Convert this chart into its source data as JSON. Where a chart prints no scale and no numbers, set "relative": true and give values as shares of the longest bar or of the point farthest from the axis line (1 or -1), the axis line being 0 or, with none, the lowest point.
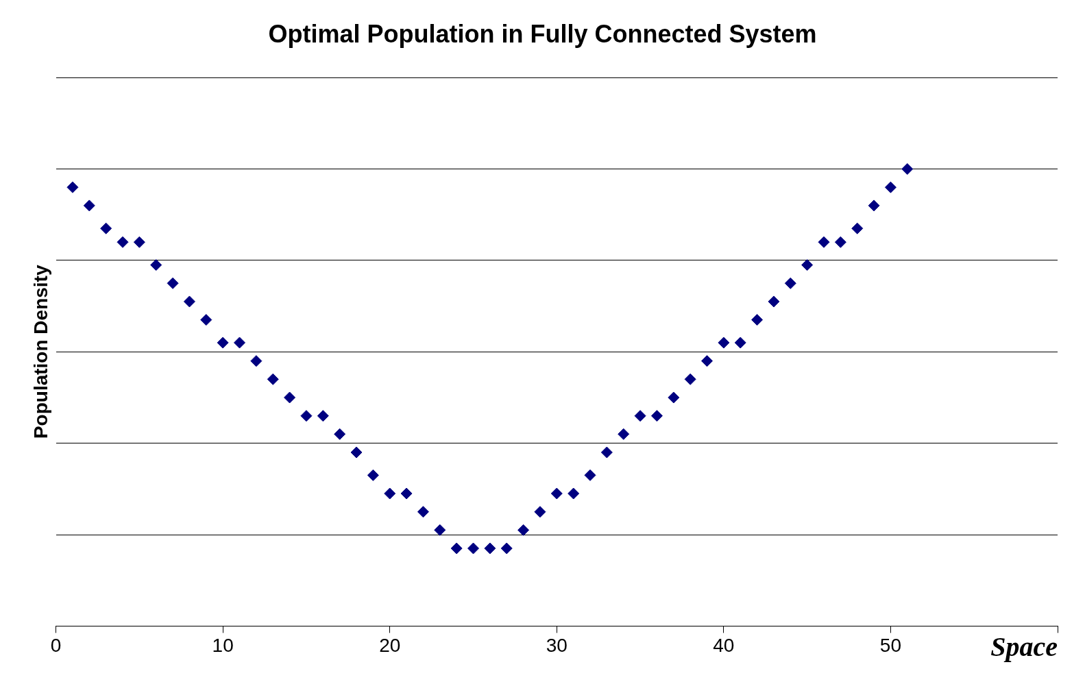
{
  "chart_data": {
    "type": "scatter",
    "title": "Optimal Population in Fully Connected System",
    "xlabel": "Space",
    "ylabel": "Population Density",
    "relative": true,
    "grid": "y",
    "legend": false,
    "marker": "diamond",
    "xlim": [
      0,
      60
    ],
    "xticks": [
      0,
      10,
      20,
      30,
      40,
      50,
      {
        "value": 60,
        "label": null
      }
    ],
    "series": [
      {
        "color": "#000080",
        "x": [
          1,
          2,
          3,
          4,
          5,
          6,
          7,
          8,
          9,
          10,
          11,
          12,
          13,
          14,
          15,
          16,
          17,
          18,
          19,
          20,
          21,
          22,
          23,
          24,
          25,
          26,
          27,
          28,
          29,
          30,
          31,
          32,
          33,
          34,
          35,
          36,
          37,
          38,
          39,
          40,
          41,
          42,
          43,
          44,
          45,
          46,
          47,
          48,
          49,
          50,
          51
        ],
        "values": [
          0.96,
          0.92,
          0.87,
          0.84,
          0.84,
          0.79,
          0.75,
          0.71,
          0.67,
          0.62,
          0.62,
          0.58,
          0.54,
          0.5,
          0.46,
          0.46,
          0.42,
          0.38,
          0.33,
          0.29,
          0.29,
          0.25,
          0.21,
          0.17,
          0.17,
          0.17,
          0.17,
          0.21,
          0.25,
          0.29,
          0.29,
          0.33,
          0.38,
          0.42,
          0.46,
          0.46,
          0.5,
          0.54,
          0.58,
          0.62,
          0.62,
          0.67,
          0.71,
          0.75,
          0.79,
          0.84,
          0.84,
          0.87,
          0.92,
          0.96,
          1
        ]
      }
    ]
  }
}
